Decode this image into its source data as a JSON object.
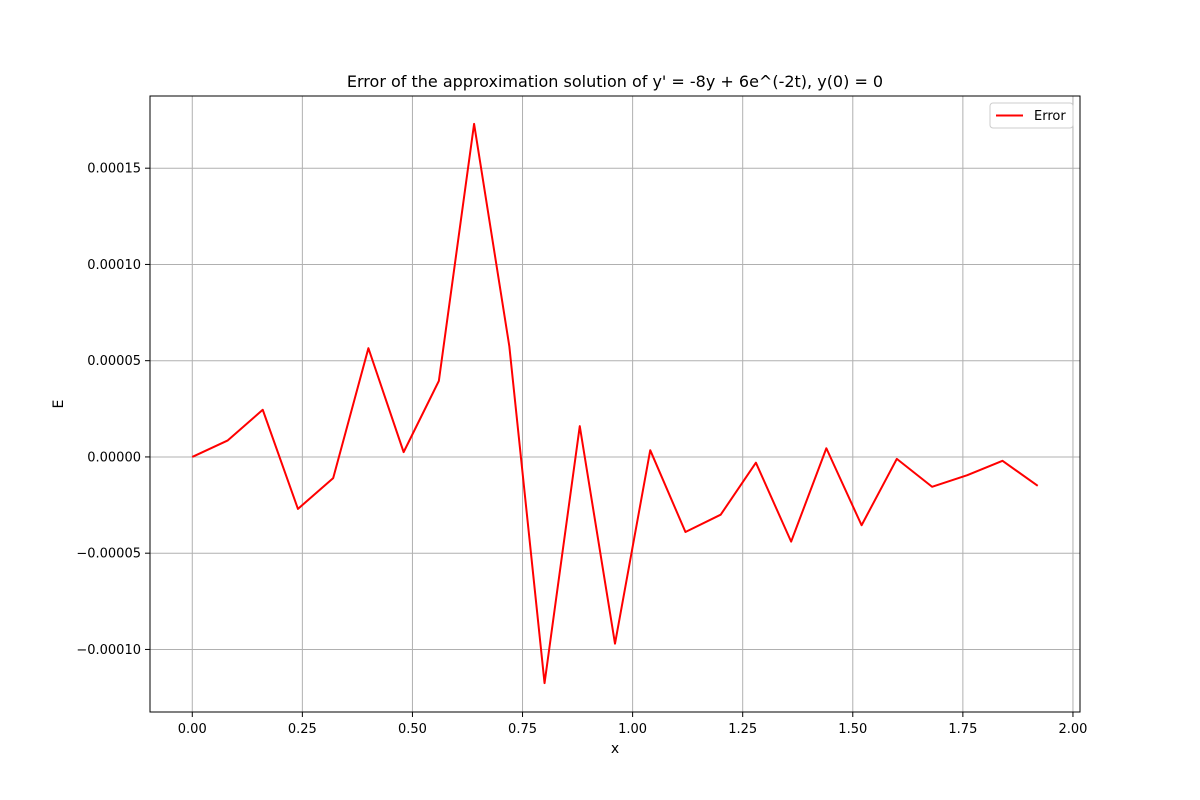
{
  "chart_data": {
    "type": "line",
    "title": "Error of the approximation solution of y' = -8y + 6e^(-2t), y(0) = 0",
    "xlabel": "x",
    "ylabel": "E",
    "xlim": [
      -0.096,
      2.016
    ],
    "ylim": [
      -0.0001325,
      0.0001875
    ],
    "xticks": [
      0.0,
      0.25,
      0.5,
      0.75,
      1.0,
      1.25,
      1.5,
      1.75,
      2.0
    ],
    "xtick_labels": [
      "0.00",
      "0.25",
      "0.50",
      "0.75",
      "1.00",
      "1.25",
      "1.50",
      "1.75",
      "2.00"
    ],
    "yticks": [
      -0.0001,
      -5e-05,
      0.0,
      5e-05,
      0.0001,
      0.00015
    ],
    "ytick_labels": [
      "−0.00010",
      "−0.00005",
      "0.00000",
      "0.00005",
      "0.00010",
      "0.00015"
    ],
    "grid": true,
    "legend_position": "top-right",
    "series": [
      {
        "name": "Error",
        "color": "#ff0000",
        "x": [
          0.0,
          0.08,
          0.16,
          0.24,
          0.32,
          0.4,
          0.48,
          0.56,
          0.64,
          0.72,
          0.8,
          0.88,
          0.96,
          1.04,
          1.12,
          1.2,
          1.28,
          1.36,
          1.44,
          1.52,
          1.6,
          1.68,
          1.76,
          1.84,
          1.92
        ],
        "y": [
          0.0,
          8.5e-06,
          2.45e-05,
          -2.7e-05,
          -1.1e-05,
          5.65e-05,
          2.5e-06,
          3.95e-05,
          0.000173,
          5.75e-05,
          -0.0001175,
          1.6e-05,
          -9.7e-05,
          3.5e-06,
          -3.9e-05,
          -3e-05,
          -3e-06,
          -4.4e-05,
          4.5e-06,
          -3.55e-05,
          -1e-06,
          -1.55e-05,
          -9.5e-06,
          -2e-06,
          -1.5e-05
        ]
      }
    ]
  }
}
